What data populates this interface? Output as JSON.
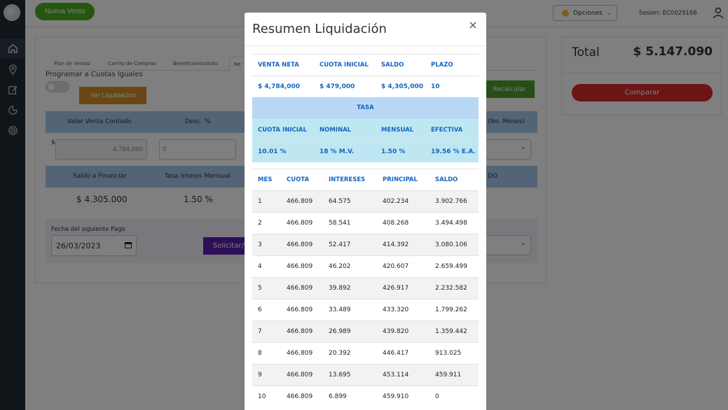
{
  "topbar": {
    "nueva_venta": "Nueva Venta",
    "opciones": "Opciones",
    "sesion": "Sesion: EC0029166"
  },
  "page": {
    "tabs": [
      "Plan de Ventas",
      "Carrito de Compras",
      "Beneficiarios/Auto.",
      "Ne"
    ],
    "programar_label": "Programar a Cuotas Iguales",
    "ver_liquidacion": "Ver Liquidacion",
    "recalcular": "Recalcular",
    "headers1": [
      "Valor Venta Contado",
      "Desc. %",
      "(No. Meses)"
    ],
    "currency_symbol": "$",
    "valor_venta_input": "4.784.000",
    "desc_input": "0",
    "headers2": [
      "Saldo a Financiar",
      "Tasa Interes Mensual",
      "DO"
    ],
    "saldo_financiar": "$ 4.305.000",
    "tasa_mensual": "1.50 %",
    "fecha_label": "Fecha del siguiente Pago",
    "fecha_value": "26/03/2023",
    "solicitar": "Solicitar/V"
  },
  "summary": {
    "total_label": "Total",
    "total_value": "$ 5.147.090",
    "comparar": "Comparar"
  },
  "modal": {
    "title": "Resumen Liquidación",
    "close": "×",
    "top_headers": [
      "VENTA NETA",
      "CUOTA INICIAL",
      "SALDO",
      "PLAZO"
    ],
    "top_values": [
      "$ 4,784,000",
      "$ 479,000",
      "$ 4,305,000",
      "10"
    ],
    "tasa_label": "TASA",
    "rate_headers": [
      "CUOTA INICIAL",
      "NOMINAL",
      "MENSUAL",
      "EFECTIVA"
    ],
    "rate_values": [
      "10.01 %",
      "18 % M.V.",
      "1.50 %",
      "19.56 % E.A."
    ],
    "amort_headers": [
      "MES",
      "CUOTA",
      "INTERESES",
      "PRINCIPAL",
      "SALDO"
    ],
    "amort_rows": [
      [
        "1",
        "466.809",
        "64.575",
        "402.234",
        "3.902.766"
      ],
      [
        "2",
        "466.809",
        "58.541",
        "408.268",
        "3.494.498"
      ],
      [
        "3",
        "466.809",
        "52.417",
        "414.392",
        "3.080.106"
      ],
      [
        "4",
        "466.809",
        "46.202",
        "420.607",
        "2.659.499"
      ],
      [
        "5",
        "466.809",
        "39.892",
        "426.917",
        "2.232.582"
      ],
      [
        "6",
        "466.809",
        "33.489",
        "433.320",
        "1.799.262"
      ],
      [
        "7",
        "466.809",
        "26.989",
        "439.820",
        "1.359.442"
      ],
      [
        "8",
        "466.809",
        "20.392",
        "446.417",
        "913.025"
      ],
      [
        "9",
        "466.809",
        "13.695",
        "453.114",
        "459.911"
      ],
      [
        "10",
        "466.809",
        "6.899",
        "459.910",
        "0"
      ]
    ]
  }
}
